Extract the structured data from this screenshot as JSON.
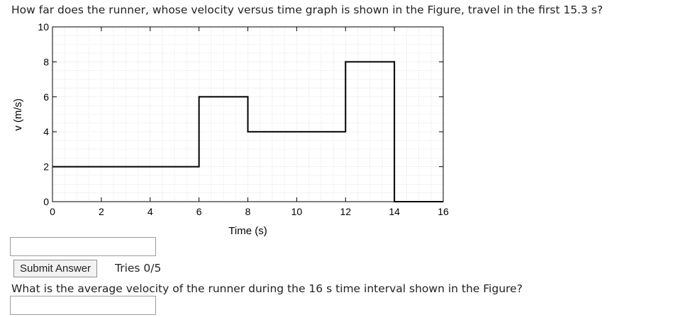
{
  "question1": "How far does the runner, whose velocity versus time graph is shown in the Figure, travel in the first 15.3 s?",
  "question2": "What is the average velocity of the runner during the 16 s time interval shown in the Figure?",
  "answer1": {
    "value": "",
    "placeholder": ""
  },
  "answer2": {
    "value": "",
    "placeholder": ""
  },
  "submit_label": "Submit Answer",
  "tries_label": "Tries 0/5",
  "chart_data": {
    "type": "line",
    "step": true,
    "xlabel": "Time (s)",
    "ylabel": "v (m/s)",
    "xlim": [
      0,
      16
    ],
    "ylim": [
      0,
      10
    ],
    "xticks": [
      0,
      2,
      4,
      6,
      8,
      10,
      12,
      14,
      16
    ],
    "yticks": [
      0,
      2,
      4,
      6,
      8,
      10
    ],
    "grid": true,
    "series": [
      {
        "x": [
          0,
          6,
          6,
          8,
          8,
          12,
          12,
          14,
          14,
          16
        ],
        "y": [
          2,
          2,
          6,
          6,
          4,
          4,
          8,
          8,
          0,
          0
        ]
      }
    ]
  }
}
